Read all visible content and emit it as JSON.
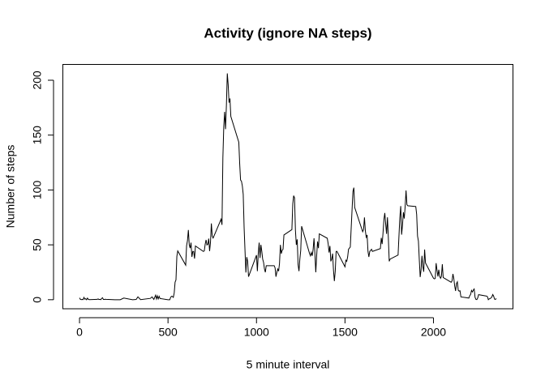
{
  "chart_data": {
    "type": "line",
    "title": "Activity (ignore NA steps)",
    "x_label": "5 minute interval",
    "y_label": "Number of steps",
    "color": "#000000",
    "x": [
      0,
      5,
      10,
      15,
      20,
      25,
      30,
      35,
      40,
      45,
      50,
      55,
      100,
      105,
      110,
      115,
      120,
      125,
      130,
      135,
      140,
      145,
      150,
      200,
      230,
      250,
      300,
      320,
      330,
      345,
      400,
      410,
      420,
      430,
      435,
      440,
      445,
      450,
      455,
      500,
      510,
      515,
      520,
      525,
      530,
      535,
      540,
      545,
      550,
      555,
      600,
      605,
      610,
      615,
      620,
      625,
      630,
      635,
      640,
      645,
      650,
      655,
      700,
      705,
      710,
      715,
      720,
      725,
      730,
      735,
      740,
      745,
      750,
      755,
      800,
      805,
      810,
      815,
      820,
      825,
      830,
      835,
      840,
      845,
      850,
      855,
      900,
      905,
      910,
      915,
      920,
      925,
      930,
      935,
      940,
      945,
      950,
      955,
      1000,
      1005,
      1010,
      1015,
      1020,
      1025,
      1030,
      1035,
      1040,
      1045,
      1050,
      1055,
      1100,
      1105,
      1110,
      1115,
      1120,
      1125,
      1130,
      1135,
      1140,
      1145,
      1150,
      1155,
      1200,
      1205,
      1210,
      1215,
      1220,
      1225,
      1230,
      1235,
      1240,
      1245,
      1250,
      1255,
      1300,
      1305,
      1310,
      1315,
      1320,
      1325,
      1330,
      1335,
      1340,
      1345,
      1350,
      1355,
      1400,
      1405,
      1410,
      1415,
      1420,
      1425,
      1430,
      1435,
      1440,
      1445,
      1450,
      1455,
      1500,
      1505,
      1510,
      1515,
      1520,
      1525,
      1530,
      1535,
      1540,
      1545,
      1550,
      1555,
      1600,
      1605,
      1610,
      1615,
      1620,
      1625,
      1630,
      1635,
      1640,
      1645,
      1650,
      1655,
      1700,
      1705,
      1710,
      1715,
      1720,
      1725,
      1730,
      1735,
      1740,
      1745,
      1750,
      1755,
      1800,
      1805,
      1810,
      1815,
      1820,
      1825,
      1830,
      1835,
      1840,
      1845,
      1850,
      1855,
      1900,
      1905,
      1910,
      1915,
      1920,
      1925,
      1930,
      1935,
      1940,
      1945,
      1950,
      1955,
      2000,
      2005,
      2010,
      2015,
      2020,
      2025,
      2030,
      2035,
      2040,
      2045,
      2050,
      2055,
      2100,
      2105,
      2110,
      2115,
      2120,
      2125,
      2130,
      2135,
      2140,
      2145,
      2150,
      2155,
      2200,
      2205,
      2210,
      2215,
      2220,
      2225,
      2230,
      2235,
      2240,
      2245,
      2250,
      2255,
      2300,
      2305,
      2310,
      2315,
      2320,
      2325,
      2330,
      2335,
      2340,
      2345,
      2350,
      2355
    ],
    "values": [
      1.7,
      0.3,
      0.1,
      0.2,
      0.1,
      2.1,
      0.5,
      0.9,
      0,
      1.5,
      0.3,
      0.1,
      0.3,
      0.7,
      0.2,
      0.3,
      0,
      1.1,
      1.8,
      0.2,
      0.2,
      0.4,
      0.3,
      0,
      0,
      1.5,
      0,
      0.2,
      2.6,
      0.1,
      1.2,
      2.6,
      0.3,
      4.1,
      0.7,
      3.5,
      0.8,
      3.1,
      1.1,
      0,
      0,
      2.2,
      3.2,
      3,
      2.1,
      6.1,
      16,
      18,
      39.5,
      44.5,
      31.5,
      49.3,
      53.8,
      63.5,
      50,
      47,
      52,
      39,
      44,
      44,
      37.5,
      49,
      44,
      44.5,
      50.5,
      54.5,
      49.9,
      50.5,
      55.7,
      44.3,
      52.3,
      69.5,
      57.8,
      56.2,
      73.4,
      68.2,
      129.4,
      157.5,
      171.2,
      155.4,
      177.3,
      206.2,
      195.9,
      179.6,
      183.4,
      167,
      143.5,
      124,
      109,
      108,
      103.7,
      96,
      66.2,
      45.2,
      24.8,
      38.8,
      35,
      21,
      40.6,
      26,
      42,
      52,
      38,
      50,
      44,
      37,
      34,
      28,
      25,
      31,
      31,
      29,
      21,
      25,
      28,
      26,
      33,
      50,
      42,
      45,
      46,
      59,
      63.9,
      87.5,
      94.8,
      92.8,
      63.4,
      50,
      55,
      32,
      26,
      37,
      45,
      67,
      42,
      40,
      43,
      40,
      46,
      56,
      42,
      25,
      40,
      53,
      47,
      60,
      56,
      51,
      43,
      49,
      35,
      37,
      42,
      27,
      17,
      26,
      44,
      44,
      30,
      36,
      35,
      39,
      46,
      47,
      48,
      65,
      82,
      98.7,
      102.1,
      84,
      62,
      64,
      75,
      63,
      57,
      59,
      44,
      39,
      44,
      45,
      46,
      44,
      46.6,
      56.3,
      50.7,
      61,
      73,
      79,
      68.9,
      60,
      75.1,
      56.5,
      35,
      37,
      40.7,
      58,
      74.7,
      85.3,
      59.3,
      68,
      79.7,
      74,
      85,
      99.5,
      86.6,
      85.6,
      84.9,
      77.8,
      58,
      53.4,
      36.3,
      20.7,
      27.4,
      40,
      30.2,
      25.5,
      45.7,
      33.5,
      19.6,
      19,
      19.3,
      33.3,
      26.8,
      21.2,
      27.3,
      21.3,
      19.5,
      21.3,
      32.3,
      20.2,
      15.9,
      17.2,
      23.5,
      19.2,
      12.5,
      8,
      14.7,
      16.3,
      8.7,
      7.8,
      8.1,
      2.6,
      1.5,
      3.7,
      4.8,
      8.5,
      7.1,
      8.7,
      9.8,
      2.2,
      0.3,
      0.1,
      1.6,
      4.6,
      3.3,
      2.8,
      0,
      0.8,
      1,
      1.6,
      2.6,
      4.7,
      3.3,
      0.6,
      0.2,
      1.1
    ],
    "xlim": [
      -94.2,
      2449.2
    ],
    "ylim": [
      -8.25,
      214.4
    ],
    "xticks": [
      0,
      500,
      1000,
      1500,
      2000
    ],
    "yticks": [
      0,
      50,
      100,
      150,
      200
    ]
  }
}
